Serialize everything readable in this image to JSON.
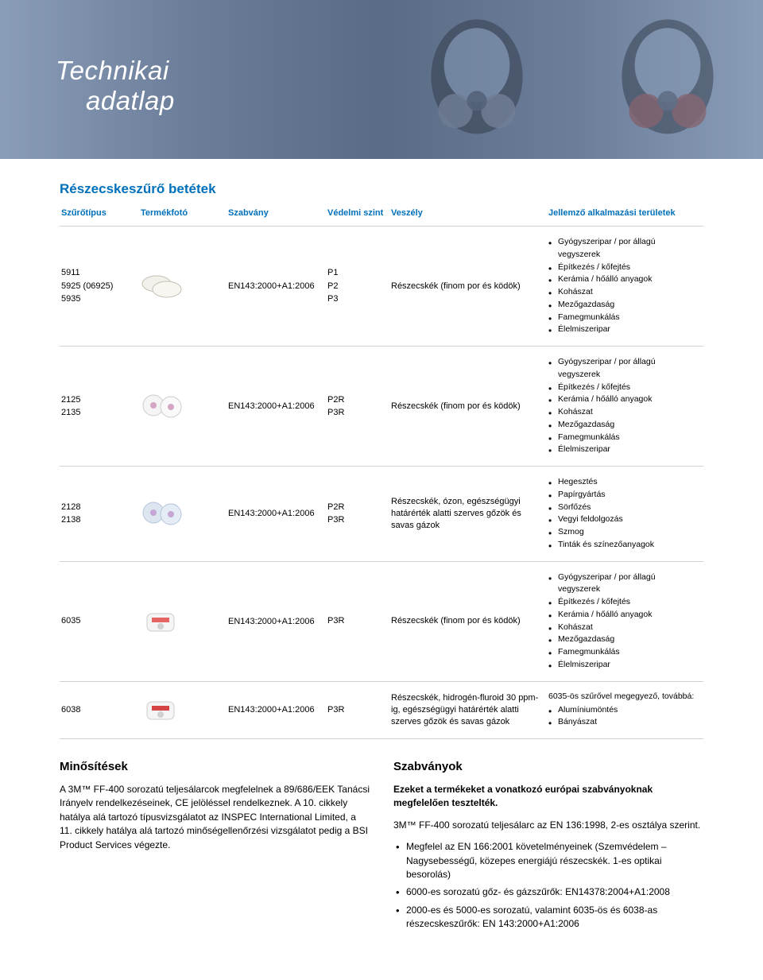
{
  "header": {
    "title_line1": "Technikai",
    "title_line2": "adatlap"
  },
  "section_heading": "Részecskeszűrő betétek",
  "table": {
    "headers": {
      "type": "Szűrőtípus",
      "photo": "Termékfotó",
      "standard": "Szabvány",
      "level": "Védelmi szint",
      "hazard": "Veszély",
      "apps": "Jellemző alkalmazási területek"
    },
    "rows": [
      {
        "type": "5911\n5925 (06925)\n5935",
        "standard": "EN143:2000+A1:2006",
        "level": "P1\nP2\nP3",
        "hazard": "Részecskék (finom por és ködök)",
        "apps": [
          "Gyógyszeripar / por állagú vegyszerek",
          "Építkezés / kőfejtés",
          "Kerámia / hőálló anyagok",
          "Kohászat",
          "Mezőgazdaság",
          "Famegmunkálás",
          "Élelmiszeripar"
        ],
        "shape": "pad-white",
        "intro": ""
      },
      {
        "type": "2125\n2135",
        "standard": "EN143:2000+A1:2006",
        "level": "P2R\nP3R",
        "hazard": "Részecskék (finom por és ködök)",
        "apps": [
          "Gyógyszeripar / por állagú vegyszerek",
          "Építkezés / kőfejtés",
          "Kerámia / hőálló anyagok",
          "Kohászat",
          "Mezőgazdaság",
          "Famegmunkálás",
          "Élelmiszeripar"
        ],
        "shape": "disc-white",
        "intro": ""
      },
      {
        "type": "2128\n2138",
        "standard": "EN143:2000+A1:2006",
        "level": "P2R\nP3R",
        "hazard": "Részecskék, ózon, egészségügyi határérték alatti szerves gőzök és savas gázok",
        "apps": [
          "Hegesztés",
          "Papírgyártás",
          "Sörfőzés",
          "Vegyi feldolgozás",
          "Szmog",
          "Tinták és színezőanyagok"
        ],
        "shape": "disc-blue",
        "intro": ""
      },
      {
        "type": "6035",
        "standard": "EN143:2000+A1:2006",
        "level": "P3R",
        "hazard": "Részecskék (finom por és ködök)",
        "apps": [
          "Gyógyszeripar / por állagú vegyszerek",
          "Építkezés / kőfejtés",
          "Kerámia / hőálló anyagok",
          "Kohászat",
          "Mezőgazdaság",
          "Famegmunkálás",
          "Élelmiszeripar"
        ],
        "shape": "cart-white",
        "intro": ""
      },
      {
        "type": "6038",
        "standard": "EN143:2000+A1:2006",
        "level": "P3R",
        "hazard": "Részecskék, hidrogén-fluroid 30 ppm-ig, egészségügyi határérték alatti szerves gőzök és savas gázok",
        "apps": [
          "Alumíniumöntés",
          "Bányászat"
        ],
        "shape": "cart-red",
        "intro": "6035-ös szűrővel megegyező, továbbá:"
      }
    ]
  },
  "certifications": {
    "heading": "Minősítések",
    "body": "A 3M™ FF-400 sorozatú teljesálarcok megfelelnek a 89/686/EEK Tanácsi Irányelv rendelkezéseinek, CE jelöléssel rendelkeznek. A 10. cikkely hatálya alá tartozó típusvizsgálatot az INSPEC International Limited, a 11. cikkely hatálya alá tartozó minőségellenőrzési vizsgálatot pedig a BSI Product Services végezte."
  },
  "standards": {
    "heading": "Szabványok",
    "intro": "Ezeket a termékeket a vonatkozó európai szabványoknak megfelelően tesztelték.",
    "line2": "3M™ FF-400 sorozatú teljesálarc az EN 136:1998, 2-es osztálya szerint.",
    "items": [
      "Megfelel az EN 166:2001 követelményeinek (Szemvédelem – Nagysebességű, közepes energiájú részecskék. 1-es optikai besorolás)",
      "6000-es sorozatú gőz- és gázszűrők: EN14378:2004+A1:2008",
      "2000-es és 5000-es sorozatú, valamint 6035-ös és 6038-as részecskeszűrők: EN 143:2000+A1:2006"
    ]
  },
  "colors": {
    "brand_blue": "#0070ba",
    "border_gray": "#d0d0d0",
    "bg_header": "#6b7d99"
  },
  "fonts": {
    "body_size_pt": 12,
    "table_size_pt": 11,
    "heading_size_pt": 17
  }
}
